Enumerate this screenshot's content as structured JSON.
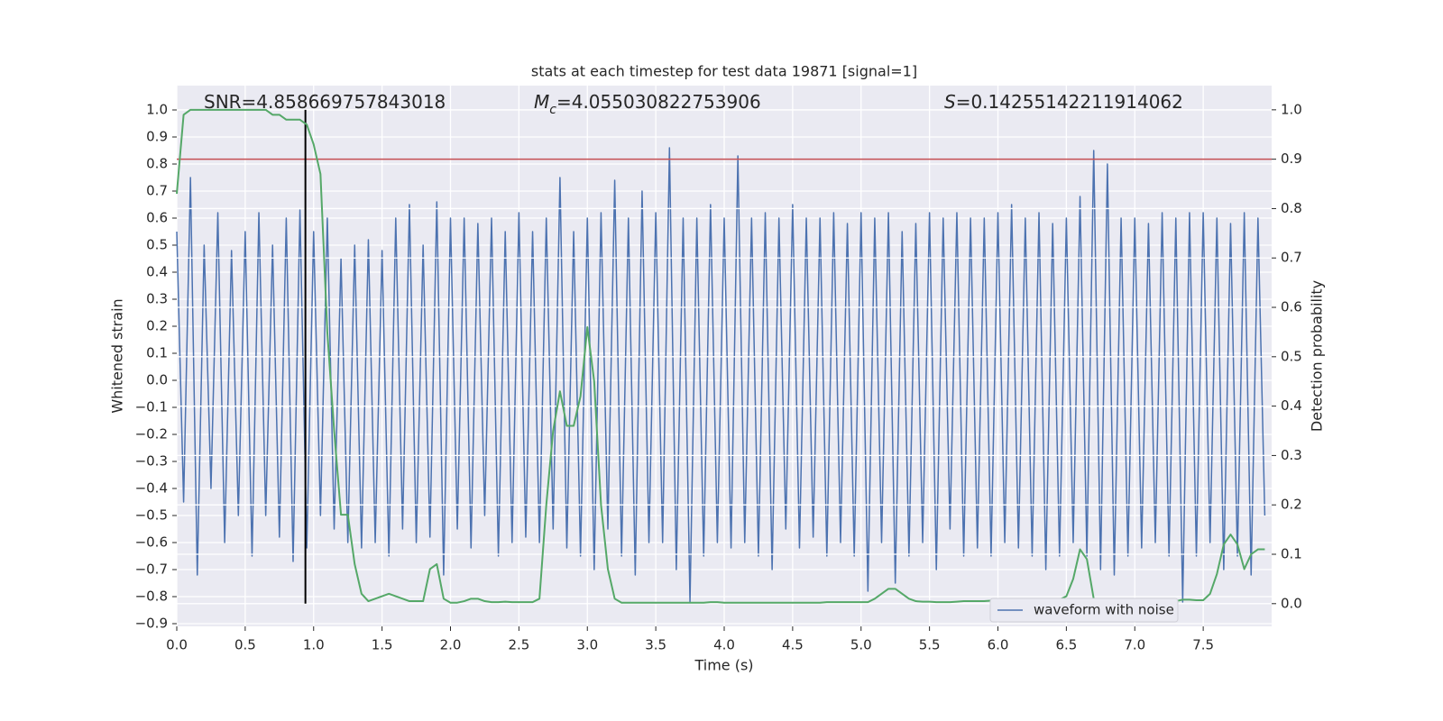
{
  "chart_data": {
    "type": "line",
    "title": "stats at each timestep for test data 19871 [signal=1]",
    "xlabel": "Time (s)",
    "ylabel": "Whitened strain",
    "y2label": "Detection probability",
    "annotations": [
      {
        "text": "SNR=4.858669757843018"
      },
      {
        "symbol": "M",
        "sub": "c",
        "text": "=4.055030822753906"
      },
      {
        "symbol": "S",
        "text": "=0.14255142211914062"
      }
    ],
    "xlim": [
      0,
      8
    ],
    "ylim": [
      -0.91,
      1.09
    ],
    "y2lim": [
      -0.046,
      1.049
    ],
    "xticks": [
      {
        "value": 0,
        "label": "0.0"
      },
      {
        "value": 0.5,
        "label": "0.5"
      },
      {
        "value": 1,
        "label": "1.0"
      },
      {
        "value": 1.5,
        "label": "1.5"
      },
      {
        "value": 2,
        "label": "2.0"
      },
      {
        "value": 2.5,
        "label": "2.5"
      },
      {
        "value": 3,
        "label": "3.0"
      },
      {
        "value": 3.5,
        "label": "3.5"
      },
      {
        "value": 4,
        "label": "4.0"
      },
      {
        "value": 4.5,
        "label": "4.5"
      },
      {
        "value": 5,
        "label": "5.0"
      },
      {
        "value": 5.5,
        "label": "5.5"
      },
      {
        "value": 6,
        "label": "6.0"
      },
      {
        "value": 6.5,
        "label": "6.5"
      },
      {
        "value": 7,
        "label": "7.0"
      },
      {
        "value": 7.5,
        "label": "7.5"
      }
    ],
    "yticks": [
      {
        "value": -0.9,
        "label": "−0.9"
      },
      {
        "value": -0.8,
        "label": "−0.8"
      },
      {
        "value": -0.7,
        "label": "−0.7"
      },
      {
        "value": -0.6,
        "label": "−0.6"
      },
      {
        "value": -0.5,
        "label": "−0.5"
      },
      {
        "value": -0.4,
        "label": "−0.4"
      },
      {
        "value": -0.3,
        "label": "−0.3"
      },
      {
        "value": -0.2,
        "label": "−0.2"
      },
      {
        "value": -0.1,
        "label": "−0.1"
      },
      {
        "value": 0,
        "label": "0.0"
      },
      {
        "value": 0.1,
        "label": "0.1"
      },
      {
        "value": 0.2,
        "label": "0.2"
      },
      {
        "value": 0.3,
        "label": "0.3"
      },
      {
        "value": 0.4,
        "label": "0.4"
      },
      {
        "value": 0.5,
        "label": "0.5"
      },
      {
        "value": 0.6,
        "label": "0.6"
      },
      {
        "value": 0.7,
        "label": "0.7"
      },
      {
        "value": 0.8,
        "label": "0.8"
      },
      {
        "value": 0.9,
        "label": "0.9"
      },
      {
        "value": 1,
        "label": "1.0"
      }
    ],
    "y2ticks": [
      {
        "value": 0,
        "label": "0.0"
      },
      {
        "value": 0.1,
        "label": "0.1"
      },
      {
        "value": 0.2,
        "label": "0.2"
      },
      {
        "value": 0.3,
        "label": "0.3"
      },
      {
        "value": 0.4,
        "label": "0.4"
      },
      {
        "value": 0.5,
        "label": "0.5"
      },
      {
        "value": 0.6,
        "label": "0.6"
      },
      {
        "value": 0.7,
        "label": "0.7"
      },
      {
        "value": 0.8,
        "label": "0.8"
      },
      {
        "value": 0.9,
        "label": "0.9"
      },
      {
        "value": 1,
        "label": "1.0"
      }
    ],
    "grid": true,
    "legend": "lower right",
    "x": [
      0,
      0.05,
      0.1,
      0.15,
      0.2,
      0.25,
      0.3,
      0.35,
      0.4,
      0.45,
      0.5,
      0.55,
      0.6,
      0.65,
      0.7,
      0.75,
      0.8,
      0.85,
      0.9,
      0.95,
      1,
      1.05,
      1.1,
      1.15,
      1.2,
      1.25,
      1.3,
      1.35,
      1.4,
      1.45,
      1.5,
      1.55,
      1.6,
      1.65,
      1.7,
      1.75,
      1.8,
      1.85,
      1.9,
      1.95,
      2,
      2.05,
      2.1,
      2.15,
      2.2,
      2.25,
      2.3,
      2.35,
      2.4,
      2.45,
      2.5,
      2.55,
      2.6,
      2.65,
      2.7,
      2.75,
      2.8,
      2.85,
      2.9,
      2.95,
      3,
      3.05,
      3.1,
      3.15,
      3.2,
      3.25,
      3.3,
      3.35,
      3.4,
      3.45,
      3.5,
      3.55,
      3.6,
      3.65,
      3.7,
      3.75,
      3.8,
      3.85,
      3.9,
      3.95,
      4,
      4.05,
      4.1,
      4.15,
      4.2,
      4.25,
      4.3,
      4.35,
      4.4,
      4.45,
      4.5,
      4.55,
      4.6,
      4.65,
      4.7,
      4.75,
      4.8,
      4.85,
      4.9,
      4.95,
      5,
      5.05,
      5.1,
      5.15,
      5.2,
      5.25,
      5.3,
      5.35,
      5.4,
      5.45,
      5.5,
      5.55,
      5.6,
      5.65,
      5.7,
      5.75,
      5.8,
      5.85,
      5.9,
      5.95,
      6,
      6.05,
      6.1,
      6.15,
      6.2,
      6.25,
      6.3,
      6.35,
      6.4,
      6.45,
      6.5,
      6.55,
      6.6,
      6.65,
      6.7,
      6.75,
      6.8,
      6.85,
      6.9,
      6.95,
      7,
      7.05,
      7.1,
      7.15,
      7.2,
      7.25,
      7.3,
      7.35,
      7.4,
      7.45,
      7.5,
      7.55,
      7.6,
      7.65,
      7.7,
      7.75,
      7.8,
      7.85,
      7.9,
      7.95
    ],
    "series": [
      {
        "name": "waveform with noise",
        "color": "#4c72b0",
        "values": [
          0.55,
          -0.45,
          0.75,
          -0.72,
          0.5,
          -0.4,
          0.62,
          -0.6,
          0.48,
          -0.5,
          0.55,
          -0.65,
          0.62,
          -0.5,
          0.5,
          -0.58,
          0.6,
          -0.67,
          0.63,
          -0.62,
          0.55,
          -0.5,
          0.6,
          -0.55,
          0.45,
          -0.6,
          0.5,
          -0.62,
          0.52,
          -0.6,
          0.48,
          -0.65,
          0.6,
          -0.55,
          0.65,
          -0.6,
          0.5,
          -0.58,
          0.66,
          -0.72,
          0.6,
          -0.55,
          0.6,
          -0.62,
          0.58,
          -0.5,
          0.6,
          -0.65,
          0.55,
          -0.6,
          0.62,
          -0.58,
          0.55,
          -0.6,
          0.6,
          -0.55,
          0.75,
          -0.62,
          0.55,
          -0.65,
          0.6,
          -0.7,
          0.62,
          -0.55,
          0.74,
          -0.65,
          0.6,
          -0.72,
          0.7,
          -0.6,
          0.62,
          -0.6,
          0.86,
          -0.7,
          0.6,
          -0.82,
          0.6,
          -0.65,
          0.65,
          -0.6,
          0.6,
          -0.62,
          0.83,
          -0.6,
          0.6,
          -0.65,
          0.62,
          -0.7,
          0.6,
          -0.55,
          0.65,
          -0.62,
          0.6,
          -0.58,
          0.6,
          -0.65,
          0.62,
          -0.6,
          0.58,
          -0.65,
          0.62,
          -0.78,
          0.6,
          -0.6,
          0.62,
          -0.75,
          0.55,
          -0.65,
          0.58,
          -0.6,
          0.62,
          -0.7,
          0.6,
          -0.55,
          0.62,
          -0.65,
          0.6,
          -0.62,
          0.6,
          -0.65,
          0.62,
          -0.6,
          0.65,
          -0.62,
          0.6,
          -0.65,
          0.62,
          -0.7,
          0.58,
          -0.65,
          0.6,
          -0.6,
          0.68,
          -0.65,
          0.85,
          -0.7,
          0.8,
          -0.72,
          0.6,
          -0.65,
          0.6,
          -0.62,
          0.58,
          -0.6,
          0.62,
          -0.65,
          0.6,
          -0.82,
          0.62,
          -0.65,
          0.62,
          -0.6,
          0.6,
          -0.7,
          0.58,
          -0.65,
          0.62,
          -0.72,
          0.6,
          -0.5
        ]
      },
      {
        "color": "#55a868",
        "axis": "y2",
        "values": [
          0.83,
          0.99,
          1.0,
          1.0,
          1.0,
          1.0,
          1.0,
          1.0,
          1.0,
          1.0,
          1.0,
          1.0,
          1.0,
          1.0,
          0.99,
          0.99,
          0.98,
          0.98,
          0.98,
          0.97,
          0.93,
          0.87,
          0.55,
          0.35,
          0.18,
          0.18,
          0.08,
          0.02,
          0.005,
          0.01,
          0.015,
          0.02,
          0.015,
          0.01,
          0.005,
          0.005,
          0.005,
          0.07,
          0.08,
          0.01,
          0.002,
          0.002,
          0.005,
          0.01,
          0.01,
          0.005,
          0.003,
          0.003,
          0.004,
          0.003,
          0.003,
          0.003,
          0.003,
          0.01,
          0.2,
          0.35,
          0.43,
          0.36,
          0.36,
          0.42,
          0.56,
          0.45,
          0.2,
          0.07,
          0.01,
          0.002,
          0.002,
          0.002,
          0.002,
          0.002,
          0.002,
          0.002,
          0.002,
          0.002,
          0.002,
          0.002,
          0.002,
          0.002,
          0.003,
          0.003,
          0.002,
          0.002,
          0.002,
          0.002,
          0.002,
          0.002,
          0.002,
          0.002,
          0.002,
          0.002,
          0.002,
          0.002,
          0.002,
          0.002,
          0.002,
          0.003,
          0.003,
          0.003,
          0.003,
          0.003,
          0.003,
          0.003,
          0.01,
          0.02,
          0.03,
          0.03,
          0.02,
          0.01,
          0.005,
          0.004,
          0.004,
          0.003,
          0.003,
          0.003,
          0.004,
          0.005,
          0.005,
          0.005,
          0.005,
          0.006,
          0.006,
          0.008,
          0.008,
          0.007,
          0.006,
          0.005,
          0.005,
          0.005,
          0.005,
          0.008,
          0.015,
          0.05,
          0.11,
          0.09,
          0.01,
          0.005,
          0.005,
          0.006,
          0.003,
          0.003,
          0.003,
          0.003,
          0.003,
          0.003,
          0.003,
          0.004,
          0.005,
          0.008,
          0.008,
          0.007,
          0.007,
          0.02,
          0.06,
          0.12,
          0.14,
          0.12,
          0.07,
          0.1,
          0.11,
          0.11
        ]
      }
    ],
    "hlines": [
      {
        "y": 0.9,
        "axis": "y2",
        "color": "#c44e52"
      }
    ],
    "vlines": [
      {
        "x": 0.94,
        "ymin": 0,
        "ymax": 1,
        "axis": "y2",
        "color": "#000000"
      }
    ]
  }
}
